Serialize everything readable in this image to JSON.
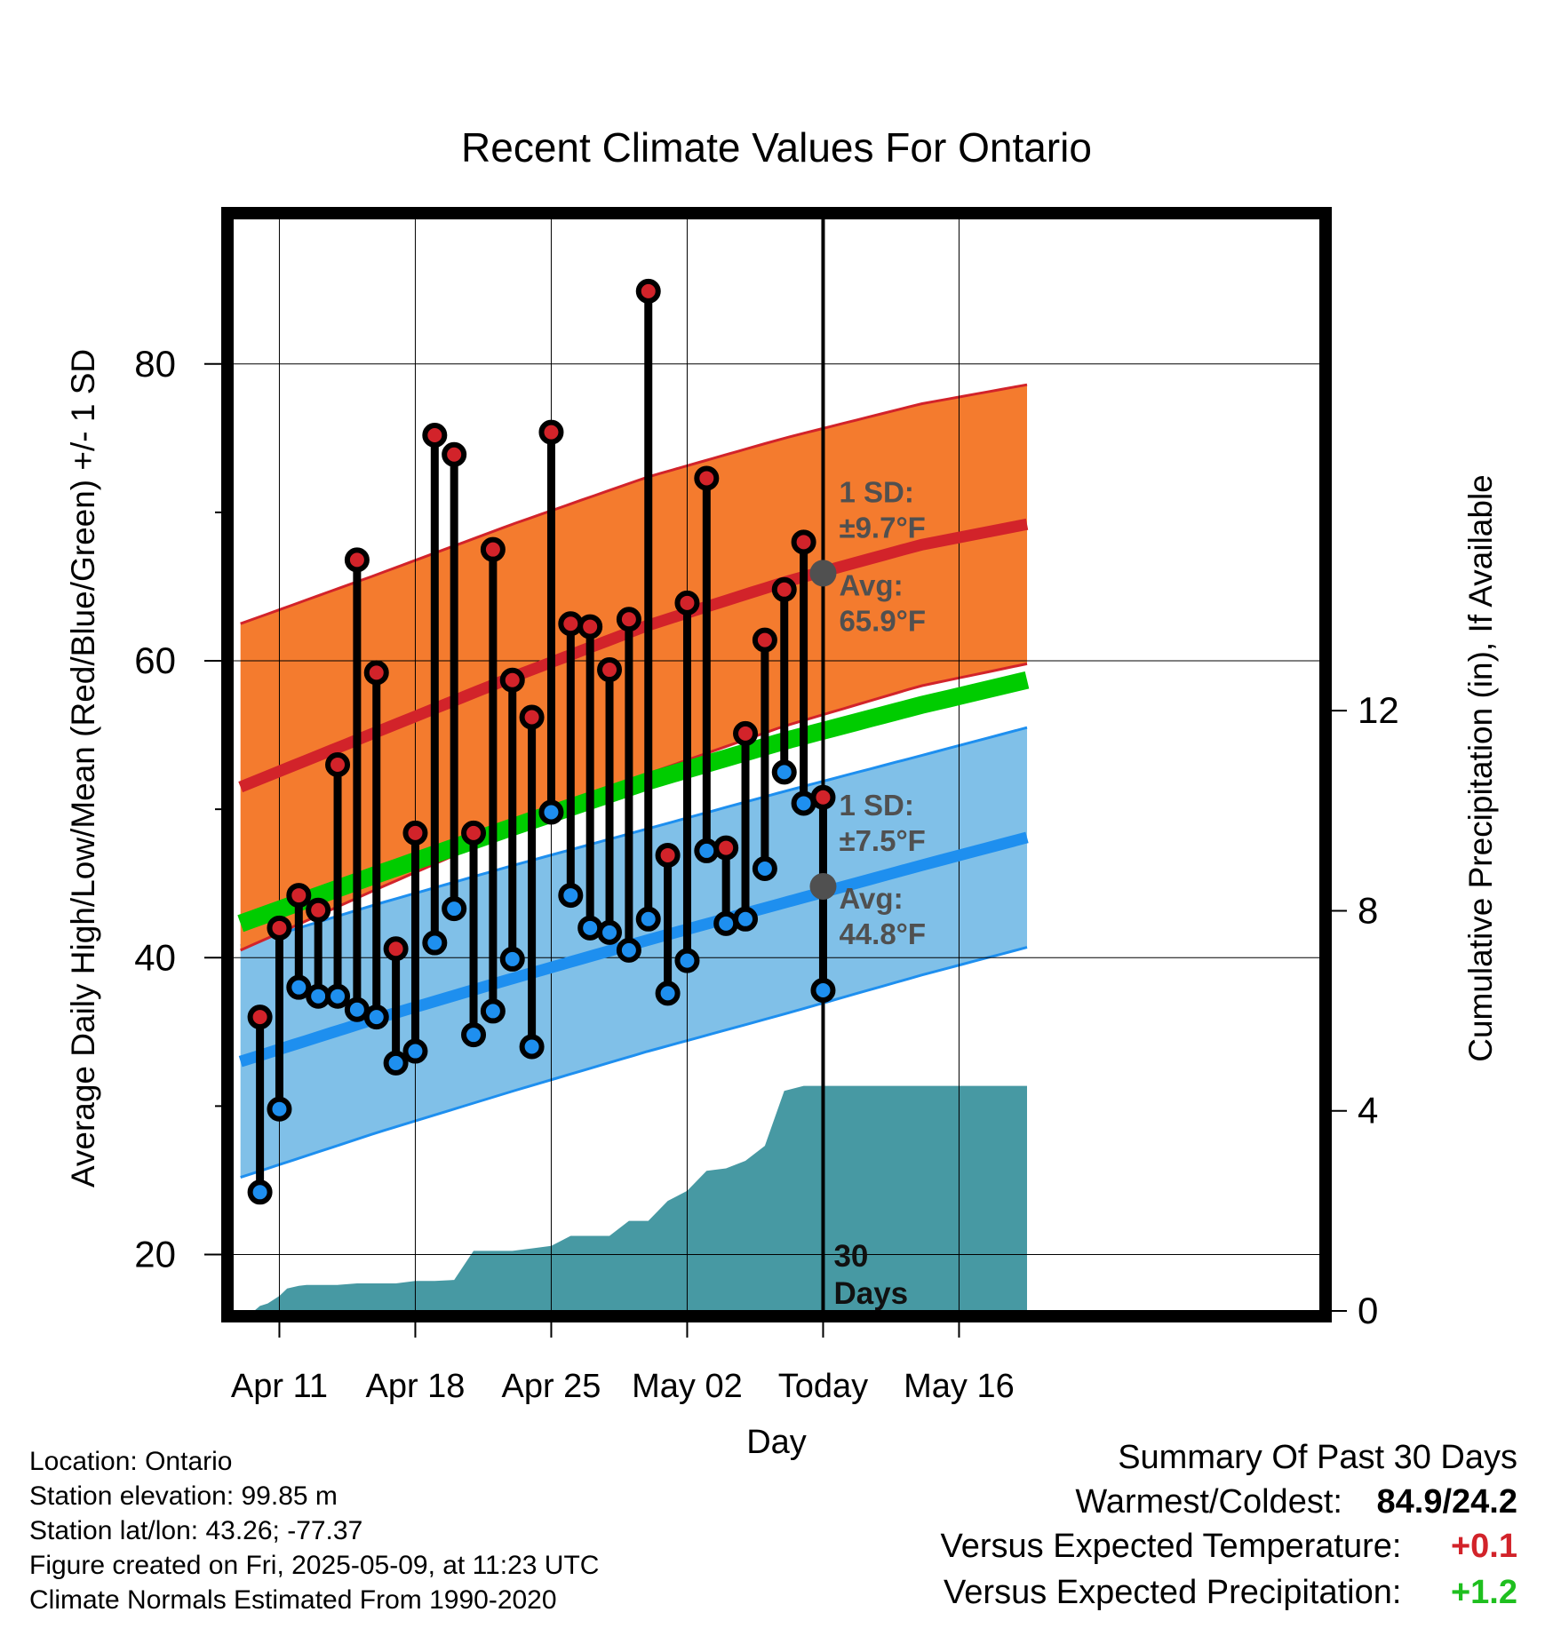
{
  "chart_data": {
    "type": "line",
    "title": "Recent Climate Values For Ontario",
    "xlabel": "Day",
    "ylabel_left": "Average Daily High/Low/Mean (Red/Blue/Green) +/- 1 SD",
    "ylabel_right": "Cumulative Precipitation (in), If Available",
    "x_range": [
      8.6,
      64.6
    ],
    "ylim_left": [
      16.2,
      89.8
    ],
    "ylim_right": [
      0,
      21.84
    ],
    "grid": true,
    "x_ticks": [
      {
        "x": 11,
        "label": "Apr 11"
      },
      {
        "x": 18,
        "label": "Apr 18"
      },
      {
        "x": 25,
        "label": "Apr 25"
      },
      {
        "x": 32,
        "label": "May 02"
      },
      {
        "x": 39,
        "label": "Today"
      },
      {
        "x": 46,
        "label": "May 16"
      }
    ],
    "y_ticks_left": [
      {
        "v": 20,
        "label": "20"
      },
      {
        "v": 30,
        "label": ""
      },
      {
        "v": 40,
        "label": "40"
      },
      {
        "v": 50,
        "label": ""
      },
      {
        "v": 60,
        "label": "60"
      },
      {
        "v": 70,
        "label": ""
      },
      {
        "v": 80,
        "label": "80"
      }
    ],
    "y_ticks_right": [
      {
        "v": 0,
        "label": "0"
      },
      {
        "v": 4,
        "label": "4"
      },
      {
        "v": 8,
        "label": "8"
      },
      {
        "v": 12,
        "label": "12"
      }
    ],
    "normals_x": [
      9,
      16,
      23,
      30,
      37,
      44,
      49.5
    ],
    "normal_high": [
      51.5,
      55.2,
      58.9,
      62.4,
      65.3,
      67.8,
      69.2
    ],
    "high_sd": [
      11.0,
      10.6,
      10.3,
      10.0,
      9.7,
      9.5,
      9.4
    ],
    "normal_low": [
      33.0,
      35.9,
      38.6,
      41.2,
      43.7,
      46.2,
      48.1
    ],
    "low_sd": [
      7.8,
      7.7,
      7.6,
      7.5,
      7.5,
      7.4,
      7.4
    ],
    "normal_mean": [
      42.3,
      45.6,
      48.8,
      51.9,
      54.6,
      57.0,
      58.7
    ],
    "days": [
      {
        "x": 10,
        "high": 36.0,
        "low": 24.2
      },
      {
        "x": 11,
        "high": 42.0,
        "low": 29.8
      },
      {
        "x": 12,
        "high": 44.2,
        "low": 38.0
      },
      {
        "x": 13,
        "high": 43.2,
        "low": 37.4
      },
      {
        "x": 14,
        "high": 53.0,
        "low": 37.4
      },
      {
        "x": 15,
        "high": 66.8,
        "low": 36.5
      },
      {
        "x": 16,
        "high": 59.2,
        "low": 36.0
      },
      {
        "x": 17,
        "high": 40.6,
        "low": 32.9
      },
      {
        "x": 18,
        "high": 48.4,
        "low": 33.7
      },
      {
        "x": 19,
        "high": 75.2,
        "low": 41.0
      },
      {
        "x": 20,
        "high": 73.9,
        "low": 43.3
      },
      {
        "x": 21,
        "high": 48.4,
        "low": 34.8
      },
      {
        "x": 22,
        "high": 67.5,
        "low": 36.4
      },
      {
        "x": 23,
        "high": 58.7,
        "low": 39.9
      },
      {
        "x": 24,
        "high": 56.2,
        "low": 34.0
      },
      {
        "x": 25,
        "high": 75.4,
        "low": 49.8
      },
      {
        "x": 26,
        "high": 62.5,
        "low": 44.2
      },
      {
        "x": 27,
        "high": 62.3,
        "low": 42.0
      },
      {
        "x": 28,
        "high": 59.4,
        "low": 41.7
      },
      {
        "x": 29,
        "high": 62.8,
        "low": 40.5
      },
      {
        "x": 30,
        "high": 84.9,
        "low": 42.6
      },
      {
        "x": 31,
        "high": 46.9,
        "low": 37.6
      },
      {
        "x": 32,
        "high": 63.9,
        "low": 39.8
      },
      {
        "x": 33,
        "high": 72.3,
        "low": 47.2
      },
      {
        "x": 34,
        "high": 47.4,
        "low": 42.3
      },
      {
        "x": 35,
        "high": 55.1,
        "low": 42.6
      },
      {
        "x": 36,
        "high": 61.4,
        "low": 46.0
      },
      {
        "x": 37,
        "high": 64.8,
        "low": 52.5
      },
      {
        "x": 38,
        "high": 68.0,
        "low": 50.4
      },
      {
        "x": 39,
        "high": 50.8,
        "low": 37.8
      }
    ],
    "precip_x": [
      9.0,
      9.7,
      10.0,
      10.4,
      11.0,
      11.4,
      12.0,
      12.4,
      13.0,
      14.0,
      15.0,
      16.0,
      17.0,
      18.0,
      19.0,
      20.0,
      21.0,
      22.0,
      23.0,
      24.0,
      25.0,
      26.0,
      27.0,
      28.0,
      29.0,
      30.0,
      31.0,
      32.0,
      33.0,
      34.0,
      35.0,
      36.0,
      37.0,
      38.0,
      39.0,
      49.5
    ],
    "precip_y": [
      0,
      0,
      0.1,
      0.15,
      0.3,
      0.45,
      0.5,
      0.52,
      0.52,
      0.52,
      0.55,
      0.55,
      0.55,
      0.6,
      0.6,
      0.62,
      1.2,
      1.2,
      1.2,
      1.25,
      1.3,
      1.5,
      1.5,
      1.5,
      1.8,
      1.8,
      2.2,
      2.4,
      2.8,
      2.85,
      3.0,
      3.3,
      4.4,
      4.5,
      4.5,
      4.5
    ],
    "today_x": 39,
    "label_30days": "30\nDays",
    "annotations": {
      "high_sd_label": "1 SD:",
      "high_sd_value": "±9.7°F",
      "high_avg_label": "Avg:",
      "high_avg_value": "65.9°F",
      "low_sd_label": "1 SD:",
      "low_sd_value": "±7.5°F",
      "low_avg_label": "Avg:",
      "low_avg_value": "44.8°F",
      "today_high_avg": 65.9,
      "today_low_avg": 44.8
    },
    "colors": {
      "high_band": "#f47b2e",
      "high_line": "#d2232a",
      "low_band": "#80c0e8",
      "low_line": "#1e8fef",
      "mean_line": "#00cc00",
      "precip": "#4799a3",
      "annotation": "#505050",
      "high_marker": "#d2232a",
      "low_marker": "#1e8fef"
    }
  },
  "info": {
    "location": "Location: Ontario",
    "elevation": "Station elevation: 99.85 m",
    "latlon": "Station lat/lon: 43.26; -77.37",
    "created": "Figure created on Fri, 2025-05-09, at 11:23 UTC",
    "normals": "Climate Normals Estimated From 1990-2020"
  },
  "summary": {
    "heading": "Summary Of Past 30 Days",
    "warmest_label": "Warmest/Coldest:",
    "warmest_value": "84.9/24.2",
    "temp_label": "Versus Expected Temperature:",
    "temp_value": "+0.1",
    "temp_color": "#d2232a",
    "precip_label": "Versus Expected Precipitation:",
    "precip_value": "+1.2",
    "precip_color": "#1fbf1f"
  }
}
